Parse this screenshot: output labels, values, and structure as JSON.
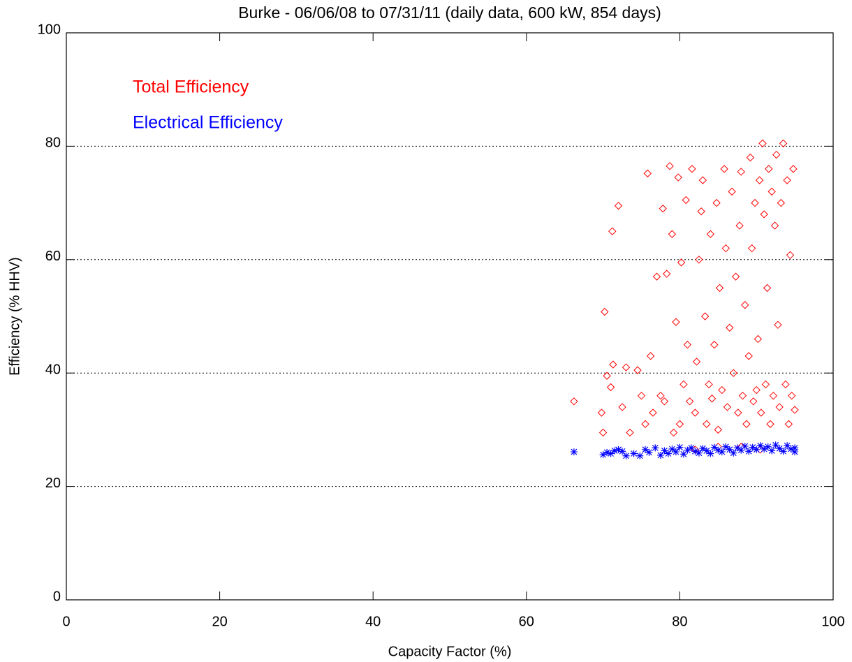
{
  "chart_data": {
    "type": "scatter",
    "title": "Burke - 06/06/08 to 07/31/11 (daily data, 600 kW, 854 days)",
    "x_label": "Capacity Factor (%)",
    "y_label": "Efficiency (% HHV)",
    "xlim": [
      0,
      100
    ],
    "ylim": [
      0,
      100
    ],
    "xticks": [
      0,
      20,
      40,
      60,
      80,
      100
    ],
    "yticks": [
      0,
      20,
      40,
      60,
      80,
      100
    ],
    "grid": true,
    "legend": "upper left",
    "series": [
      {
        "name": "Total Efficiency",
        "color": "#ff0000",
        "marker": "diamond",
        "x": [
          66.2,
          69.8,
          70,
          70.2,
          70.5,
          71,
          71.3,
          71.2,
          72,
          72.5,
          73,
          73.5,
          74.5,
          75,
          75.5,
          75.8,
          76.2,
          76.5,
          77,
          77.5,
          77.8,
          78,
          78.3,
          78.7,
          79,
          79.2,
          79.5,
          79.8,
          80,
          80.2,
          80.5,
          80.8,
          81,
          81.3,
          81.6,
          82,
          82.2,
          82.5,
          82.8,
          83,
          83.3,
          83.5,
          83.8,
          84,
          84.2,
          84.5,
          84.8,
          85,
          85.2,
          85.5,
          85.8,
          86,
          86.2,
          86.5,
          86.8,
          87,
          87.3,
          87.6,
          87.8,
          88,
          88.2,
          88.5,
          88.7,
          89,
          89.2,
          89.4,
          89.6,
          89.8,
          90,
          90.2,
          90.4,
          90.6,
          90.8,
          91,
          91.2,
          91.4,
          91.6,
          91.8,
          92,
          92.2,
          92.4,
          92.6,
          92.8,
          93,
          93.2,
          93.5,
          93.8,
          94,
          94.2,
          94.4,
          94.6,
          94.8,
          95,
          90.5,
          88,
          85,
          82
        ],
        "values": [
          35,
          33,
          29.5,
          50.8,
          39.5,
          37.5,
          41.5,
          65,
          69.5,
          34,
          41,
          29.5,
          40.5,
          36,
          31,
          75.2,
          43,
          33,
          57,
          36,
          69,
          35,
          57.5,
          76.5,
          64.5,
          29.5,
          49,
          74.5,
          31,
          59.5,
          38,
          70.5,
          45,
          35,
          76,
          33,
          42,
          60,
          68.5,
          74,
          50,
          31,
          38,
          64.5,
          35.5,
          45,
          70,
          30,
          55,
          37,
          76,
          62,
          34,
          48,
          72,
          40,
          57,
          33,
          66,
          75.5,
          36,
          52,
          31,
          43,
          78,
          62,
          35,
          70,
          37,
          46,
          74,
          33,
          80.5,
          68,
          38,
          55,
          76,
          31,
          72,
          36,
          66,
          78.5,
          48.5,
          34,
          70,
          80.5,
          38,
          74,
          31,
          60.8,
          36,
          76,
          33.5,
          26.5,
          27,
          27,
          26.5
        ]
      },
      {
        "name": "Electrical Efficiency",
        "color": "#0000ff",
        "marker": "asterisk",
        "x": [
          66.2,
          70,
          70.5,
          71,
          71.5,
          72,
          72.5,
          73,
          74,
          74.8,
          75.5,
          76,
          76.8,
          77.5,
          78,
          78.5,
          79,
          79.5,
          80,
          80.5,
          81,
          81.5,
          82,
          82.5,
          83,
          83.5,
          84,
          84.5,
          85,
          85.5,
          86,
          86.5,
          87,
          87.5,
          88,
          88.5,
          89,
          89.5,
          90,
          90.5,
          91,
          91.5,
          92,
          92.5,
          93,
          93.5,
          94,
          94.5,
          95,
          95
        ],
        "values": [
          26.1,
          25.6,
          26,
          25.8,
          26.3,
          26.5,
          26.2,
          25.4,
          25.8,
          25.4,
          26.5,
          26,
          26.8,
          25.5,
          26.3,
          25.8,
          26.6,
          26.1,
          26.9,
          25.7,
          26.4,
          26.8,
          26.2,
          25.9,
          26.7,
          26.3,
          25.8,
          26.9,
          26.4,
          26.1,
          27,
          26.5,
          25.9,
          26.8,
          26.4,
          27.1,
          26.2,
          26.9,
          26.5,
          27.2,
          26.6,
          27,
          26.3,
          27.3,
          26.7,
          26.2,
          27.2,
          26.6,
          26.1,
          26.8
        ]
      }
    ]
  }
}
